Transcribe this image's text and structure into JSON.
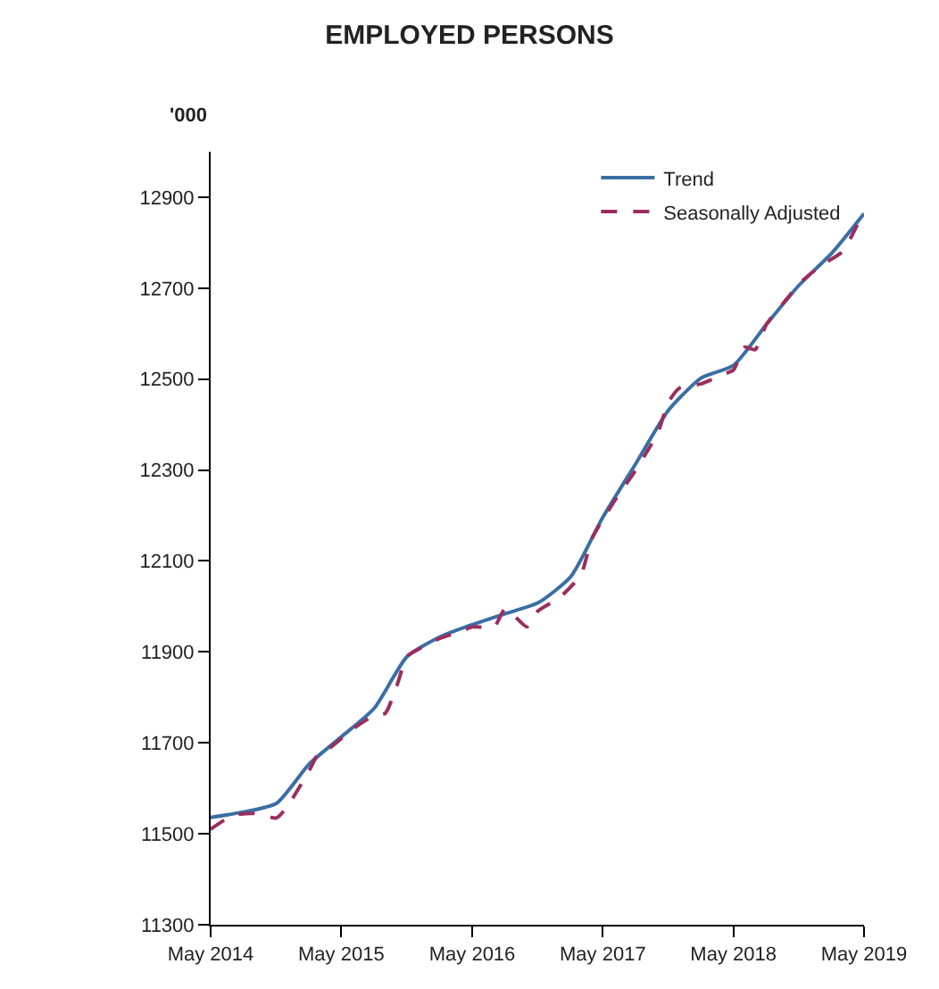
{
  "chart_data": {
    "type": "line",
    "title": "EMPLOYED PERSONS",
    "ylabel": "'000",
    "ylim": [
      11300,
      13000
    ],
    "yticks": [
      11300,
      11500,
      11700,
      11900,
      12100,
      12300,
      12500,
      12700,
      12900
    ],
    "xlim": [
      "2014-05",
      "2019-05"
    ],
    "xticks": [
      {
        "value": "2014-05",
        "label": "May 2014"
      },
      {
        "value": "2015-05",
        "label": "May 2015"
      },
      {
        "value": "2016-05",
        "label": "May 2016"
      },
      {
        "value": "2017-05",
        "label": "May 2017"
      },
      {
        "value": "2018-05",
        "label": "May 2018"
      },
      {
        "value": "2019-05",
        "label": "May 2019"
      }
    ],
    "legend": "top right",
    "marker": "none",
    "series": [
      {
        "name": "Trend",
        "color": "#3a6ea5",
        "line_style": "solid",
        "x": [
          "2014-05",
          "2014-08",
          "2014-11",
          "2015-02",
          "2015-05",
          "2015-08",
          "2015-11",
          "2016-02",
          "2016-05",
          "2016-08",
          "2016-11",
          "2017-02",
          "2017-05",
          "2017-08",
          "2017-11",
          "2018-02",
          "2018-05",
          "2018-08",
          "2018-11",
          "2019-02",
          "2019-05"
        ],
        "values": [
          11536,
          11548,
          11567,
          11654,
          11713,
          11776,
          11890,
          11933,
          11960,
          11984,
          12008,
          12066,
          12196,
          12314,
          12432,
          12503,
          12530,
          12620,
          12707,
          12778,
          12864
        ]
      },
      {
        "name": "Seasonally Adjusted",
        "color": "#9b2d5e",
        "line_style": "dashed",
        "x": [
          "2014-05",
          "2014-07",
          "2014-09",
          "2014-11",
          "2014-12",
          "2015-02",
          "2015-03",
          "2015-04",
          "2015-06",
          "2015-08",
          "2015-09",
          "2015-10",
          "2015-11",
          "2015-12",
          "2016-02",
          "2016-04",
          "2016-05",
          "2016-07",
          "2016-08",
          "2016-09",
          "2016-10",
          "2016-11",
          "2017-01",
          "2017-03",
          "2017-04",
          "2017-06",
          "2017-08",
          "2017-09",
          "2017-10",
          "2017-11",
          "2017-12",
          "2018-02",
          "2018-04",
          "2018-05",
          "2018-06",
          "2018-07",
          "2018-08",
          "2018-10",
          "2018-11",
          "2019-01",
          "2019-03",
          "2019-05"
        ],
        "values": [
          11510,
          11540,
          11545,
          11535,
          11560,
          11640,
          11680,
          11690,
          11730,
          11760,
          11765,
          11820,
          11890,
          11905,
          11930,
          11945,
          11955,
          11955,
          11995,
          11975,
          11955,
          11990,
          12020,
          12070,
          12150,
          12230,
          12300,
          12340,
          12380,
          12450,
          12480,
          12490,
          12510,
          12520,
          12570,
          12565,
          12620,
          12680,
          12710,
          12750,
          12780,
          12870
        ]
      }
    ]
  }
}
